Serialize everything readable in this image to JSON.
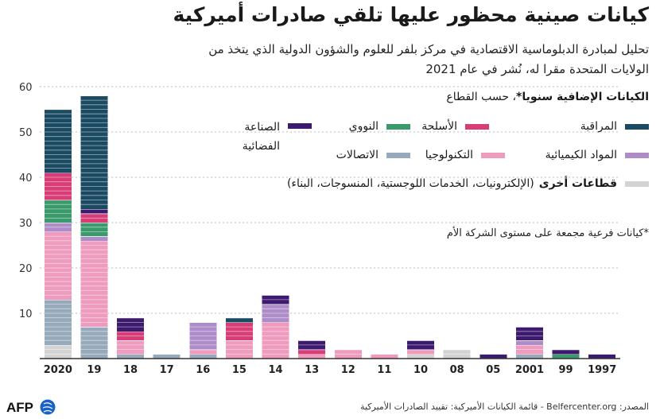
{
  "title": "كيانات صينية محظور عليها تلقي صادرات أميركية",
  "subtitle": "تحليل لمبادرة الدبلوماسية الاقتصادية في مركز بلفر للعلوم والشؤون الدولية الذي يتخذ من الولايات المتحدة مقرا له، نُشر في عام 2021",
  "legend_heading_bold": "الكيانات الإضافية سنويا*",
  "legend_heading_rest": "، حسب القطاع",
  "legend": [
    {
      "key": "surveillance",
      "label": "المراقبة",
      "color": "#1b4b63"
    },
    {
      "key": "weapons",
      "label": "الأسلحة",
      "color": "#d93d77"
    },
    {
      "key": "nuclear",
      "label": "النووي",
      "color": "#3a9a6c"
    },
    {
      "key": "space",
      "label": "الصناعة الفضائية",
      "color": "#3c1a6e"
    },
    {
      "key": "chemical",
      "label": "المواد الكيميائية",
      "color": "#ae8cc8"
    },
    {
      "key": "technology",
      "label": "التكنولوجيا",
      "color": "#ef9bbe"
    },
    {
      "key": "telecom",
      "label": "الاتصالات",
      "color": "#96aabb"
    }
  ],
  "other_sector": {
    "label_bold": "قطاعات أخرى",
    "label_rest": "(الإلكترونيات، الخدمات اللوجستية، المنسوجات، البناء)",
    "color": "#d3d3d3"
  },
  "footnote": "*كيانات فرعية مجمعة على مستوى الشركة الأم",
  "source": "المصدر: Belfercenter.org - قائمة الكيانات الأميركية: تقييد الصادرات الأميركية",
  "logo": "AFP",
  "chart_data": {
    "type": "bar",
    "stacked": true,
    "categories": [
      "2020",
      "19",
      "18",
      "17",
      "16",
      "15",
      "14",
      "13",
      "12",
      "11",
      "10",
      "08",
      "05",
      "2001",
      "99",
      "1997"
    ],
    "ylim": [
      0,
      60
    ],
    "yticks": [
      10,
      20,
      30,
      40,
      50,
      60
    ],
    "grid": true,
    "series": [
      {
        "name": "قطاعات أخرى",
        "color": "#d3d3d3",
        "values": [
          3,
          0,
          0,
          0,
          0,
          0,
          0,
          0,
          0,
          0,
          1,
          2,
          0,
          0,
          0,
          0
        ]
      },
      {
        "name": "الاتصالات",
        "color": "#96aabb",
        "values": [
          10,
          7,
          1,
          1,
          1,
          0,
          0,
          0,
          0,
          0,
          0,
          0,
          0,
          1,
          0,
          0
        ]
      },
      {
        "name": "التكنولوجيا",
        "color": "#ef9bbe",
        "values": [
          15,
          19,
          3,
          0,
          1,
          4,
          8,
          1,
          2,
          1,
          1,
          0,
          0,
          2,
          0,
          0
        ]
      },
      {
        "name": "المواد الكيميائية",
        "color": "#ae8cc8",
        "values": [
          2,
          1,
          0,
          0,
          6,
          0,
          4,
          0,
          0,
          0,
          0,
          0,
          0,
          1,
          0,
          0
        ]
      },
      {
        "name": "النووي",
        "color": "#3a9a6c",
        "values": [
          5,
          3,
          0,
          0,
          0,
          0,
          0,
          0,
          0,
          0,
          0,
          0,
          0,
          0,
          1,
          0
        ]
      },
      {
        "name": "الأسلحة",
        "color": "#d93d77",
        "values": [
          6,
          2,
          2,
          0,
          0,
          4,
          0,
          1,
          0,
          0,
          0,
          0,
          0,
          0,
          0,
          0
        ]
      },
      {
        "name": "الصناعة الفضائية",
        "color": "#3c1a6e",
        "values": [
          0,
          1,
          3,
          0,
          0,
          0,
          2,
          2,
          0,
          0,
          2,
          0,
          1,
          3,
          1,
          1
        ]
      },
      {
        "name": "المراقبة",
        "color": "#1b4b63",
        "values": [
          14,
          25,
          0,
          0,
          0,
          1,
          0,
          0,
          0,
          0,
          0,
          0,
          0,
          0,
          0,
          0
        ]
      }
    ]
  }
}
